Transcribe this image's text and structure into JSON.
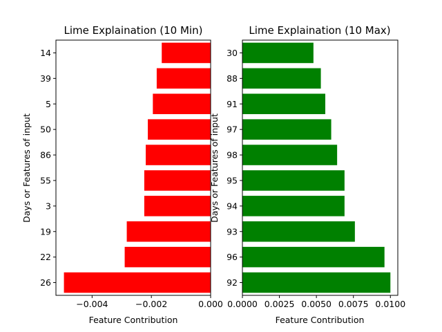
{
  "chart_data": [
    {
      "type": "bar",
      "orientation": "horizontal",
      "title": "Lime Explaination (10 Min)",
      "xlabel": "Feature Contribution",
      "ylabel": "Days or Features of input",
      "color": "#ff0000",
      "xlim": [
        -0.00522,
        0.0
      ],
      "xticks": [
        -0.004,
        -0.002,
        0.0
      ],
      "xtick_labels": [
        "−0.004",
        "−0.002",
        "0.000"
      ],
      "categories": [
        "26",
        "22",
        "19",
        "3",
        "55",
        "86",
        "50",
        "5",
        "39",
        "14"
      ],
      "values": [
        -0.00495,
        -0.0029,
        -0.00283,
        -0.00224,
        -0.00224,
        -0.00219,
        -0.00212,
        -0.00195,
        -0.00182,
        -0.00165
      ]
    },
    {
      "type": "bar",
      "orientation": "horizontal",
      "title": "Lime Explaination (10 Max)",
      "xlabel": "Feature Contribution",
      "ylabel": "Days or Features of input",
      "color": "#008000",
      "xlim": [
        0.0,
        0.0105
      ],
      "xticks": [
        0.0,
        0.0025,
        0.005,
        0.0075,
        0.01
      ],
      "xtick_labels": [
        "0.0000",
        "0.0025",
        "0.0050",
        "0.0075",
        "0.0100"
      ],
      "categories": [
        "92",
        "96",
        "93",
        "94",
        "95",
        "98",
        "97",
        "91",
        "88",
        "30"
      ],
      "values": [
        0.01,
        0.0096,
        0.0076,
        0.0069,
        0.0069,
        0.0064,
        0.006,
        0.0056,
        0.0053,
        0.0048
      ]
    }
  ]
}
